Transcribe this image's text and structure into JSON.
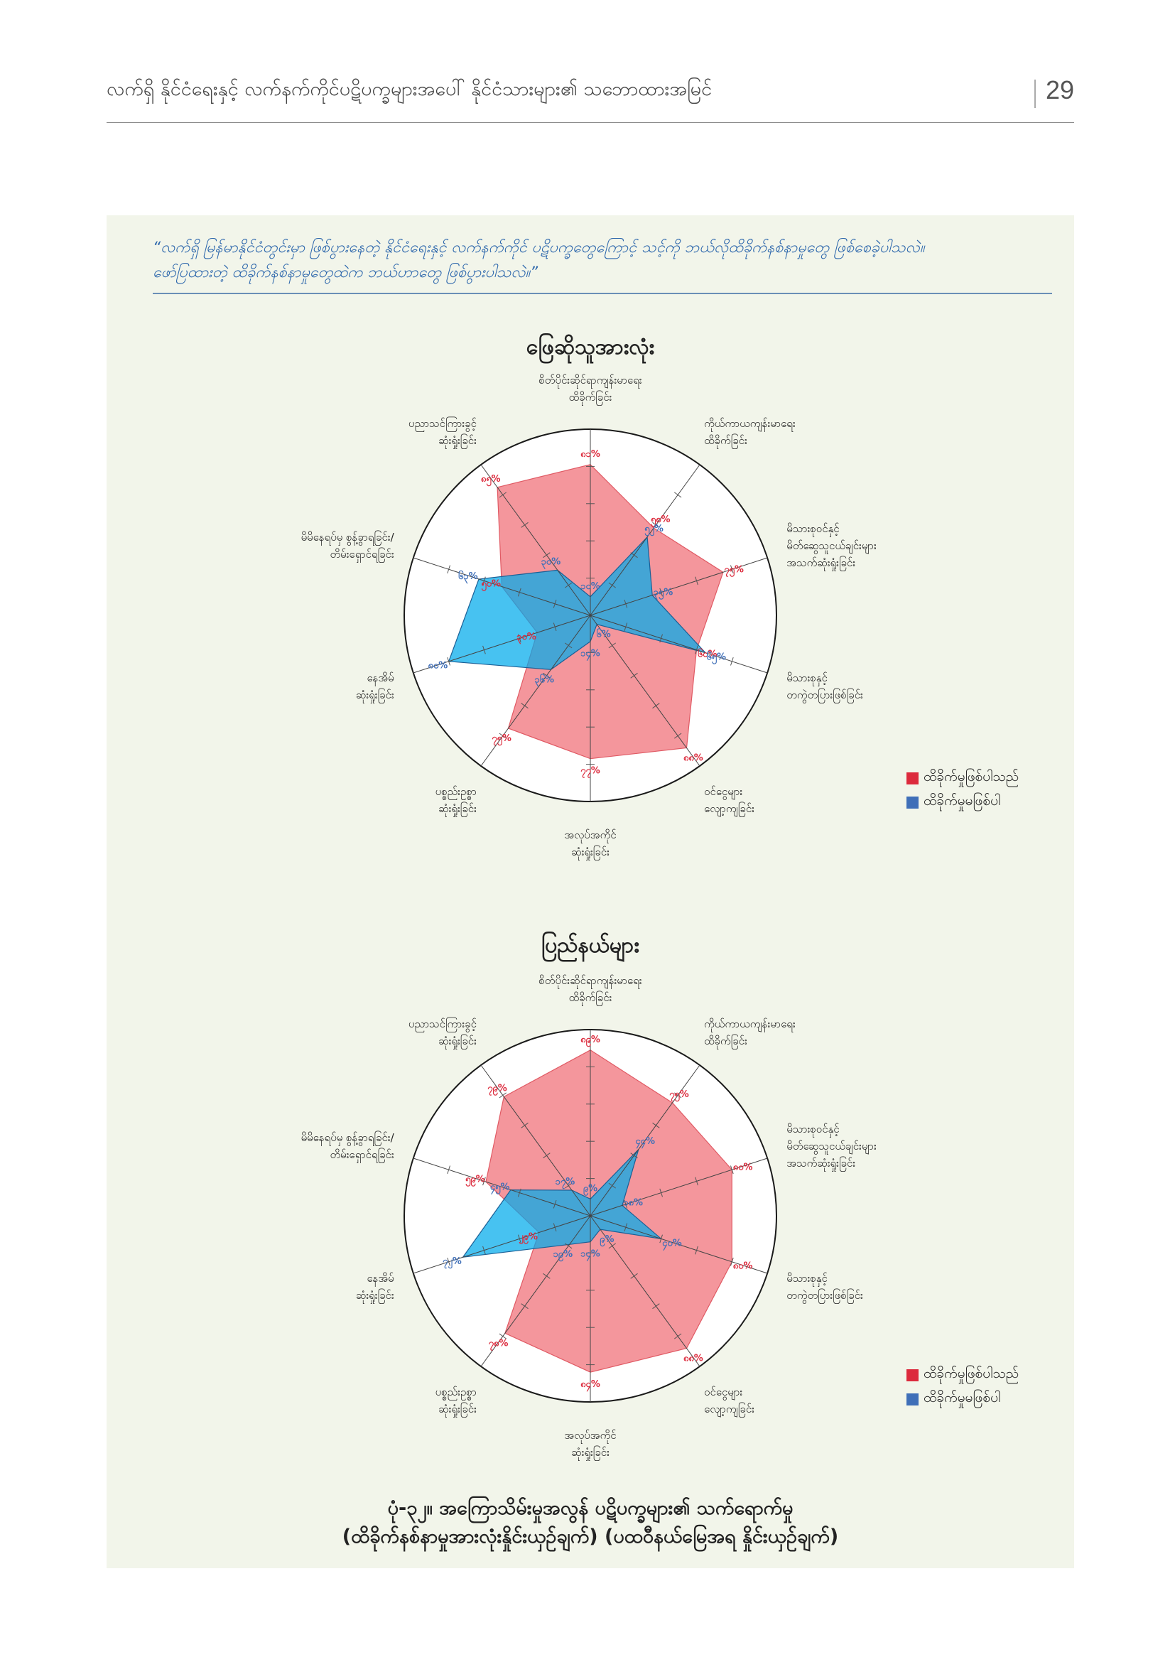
{
  "header": {
    "title": "လက်ရှိ နိုင်ငံရေးနှင့် လက်နက်ကိုင်ပဋိပက္ခများအပေါ် နိုင်ငံသားများ၏ သဘောထားအမြင်",
    "page_number": "29"
  },
  "question": {
    "line1": "“လက်ရှိ မြန်မာနိုင်ငံတွင်းမှာ ဖြစ်ပွားနေတဲ့ နိုင်ငံရေးနှင့် လက်နက်ကိုင် ပဋိပက္ခတွေကြောင့် သင့်ကို ဘယ်လိုထိခိုက်နစ်နာမှုတွေ ဖြစ်စေခဲ့ပါသလဲ။",
    "line2": "ဖော်ပြထားတဲ့ ထိခိုက်နစ်နာမှုတွေထဲက ဘယ်ဟာတွေ ဖြစ်ပွားပါသလဲ။”"
  },
  "colors": {
    "affected": "#dc2a3c",
    "not_affected": "#3f6fb8"
  },
  "legend": {
    "affected": "ထိခိုက်မှုဖြစ်ပါသည်",
    "not_affected": "ထိခိုက်မှုမဖြစ်ပါ"
  },
  "chart_data": [
    {
      "type": "radar",
      "title": "ဖြေဆိုသူအားလုံး",
      "axes": [
        [
          "စိတ်ပိုင်းဆိုင်ရာကျန်းမာရေး",
          "ထိခိုက်ခြင်း"
        ],
        [
          "ကိုယ်ကာယကျန်းမာရေး",
          "ထိခိုက်ခြင်း"
        ],
        [
          "မိသားစုဝင်နှင့်",
          "မိတ်ဆွေသူငယ်ချင်းများ",
          "အသက်ဆုံးရှုံးခြင်း"
        ],
        [
          "မိသားစုနှင့်",
          "တကွဲတပြားဖြစ်ခြင်း"
        ],
        [
          "ဝင်ငွေများ",
          "လျော့ကျခြင်း"
        ],
        [
          "အလုပ်အကိုင်",
          "ဆုံးရှုံးခြင်း"
        ],
        [
          "ပစ္စည်းဥစ္စာ",
          "ဆုံးရှုံးခြင်း"
        ],
        [
          "နေအိမ်",
          "ဆုံးရှုံးခြင်း"
        ],
        [
          "မိမိနေရပ်မှ စွန့်ခွာရခြင်း/",
          "တိမ်းရှောင်ရခြင်း"
        ],
        [
          "ပညာသင်ကြားခွင့်",
          "ဆုံးရှုံးခြင်း"
        ]
      ],
      "series": [
        {
          "name": "ထိခိုက်မှုဖြစ်ပါသည်",
          "values": [
            81,
            58,
            75,
            60,
            88,
            77,
            75,
            30,
            50,
            85
          ],
          "labels": [
            "၈၁%",
            "၅၈%",
            "၇၅%",
            "၆၀%",
            "၈၈%",
            "၇၇%",
            "၇၅%",
            "၃၀%",
            "၅၀%",
            "၈၅%"
          ]
        },
        {
          "name": "ထိခိုက်မှုမဖြစ်ပါ",
          "values": [
            10,
            52,
            35,
            65,
            6,
            14,
            36,
            80,
            63,
            30
          ],
          "labels": [
            "၁၀%",
            "၅၂%",
            "၃၅%",
            "၆၅%",
            "၆%",
            "၁၄%",
            "၃၆%",
            "၈၀%",
            "၆၃%",
            "၃၀%"
          ]
        }
      ],
      "r_max": 100,
      "rings": 5,
      "legend_position": "right"
    },
    {
      "type": "radar",
      "title": "ပြည်နယ်များ",
      "axes": [
        [
          "စိတ်ပိုင်းဆိုင်ရာကျန်းမာရေး",
          "ထိခိုက်ခြင်း"
        ],
        [
          "ကိုယ်ကာယကျန်းမာရေး",
          "ထိခိုက်ခြင်း"
        ],
        [
          "မိသားစုဝင်နှင့်",
          "မိတ်ဆွေသူငယ်ချင်းများ",
          "အသက်ဆုံးရှုံးခြင်း"
        ],
        [
          "မိသားစုနှင့်",
          "တကွဲတပြားဖြစ်ခြင်း"
        ],
        [
          "ဝင်ငွေများ",
          "လျော့ကျခြင်း"
        ],
        [
          "အလုပ်အကိုင်",
          "ဆုံးရှုံးခြင်း"
        ],
        [
          "ပစ္စည်းဥစ္စာ",
          "ဆုံးရှုံးခြင်း"
        ],
        [
          "နေအိမ်",
          "ဆုံးရှုံးခြင်း"
        ],
        [
          "မိမိနေရပ်မှ စွန့်ခွာရခြင်း/",
          "တိမ်းရှောင်ရခြင်း"
        ],
        [
          "ပညာသင်ကြားခွင့်",
          "ဆုံးရှုံးခြင်း"
        ]
      ],
      "series": [
        {
          "name": "ထိခိုက်မှုဖြစ်ပါသည်",
          "values": [
            89,
            75,
            80,
            80,
            88,
            84,
            78,
            29,
            59,
            79
          ],
          "labels": [
            "၈၉%",
            "၇၅%",
            "၈၀%",
            "၈၀%",
            "၈၈%",
            "၈၄%",
            "၇၈%",
            "၂၉%",
            "၅၉%",
            "၇၉%"
          ]
        },
        {
          "name": "ထိခိုက်မှုမဖြစ်ပါ",
          "values": [
            9,
            44,
            18,
            40,
            9,
            14,
            19,
            72,
            45,
            17
          ],
          "labels": [
            "၉%",
            "၄၄%",
            "၁၈%",
            "၄၀%",
            "၉%",
            "၁၄%",
            "၁၉%",
            "၇၂%",
            "၄၅%",
            "၁၇%"
          ]
        }
      ],
      "r_max": 100,
      "rings": 5,
      "legend_position": "right"
    }
  ],
  "caption": {
    "line1": "ပုံ-၃၂။ အကြောသိမ်းမှုအလွန် ပဋိပက္ခများ၏ သက်ရောက်မှု",
    "line2": "(ထိခိုက်နစ်နာမှုအားလုံးနှိုင်းယှဉ်ချက်) (ပထဝီနယ်မြေအရ နှိုင်းယှဉ်ချက်)"
  }
}
